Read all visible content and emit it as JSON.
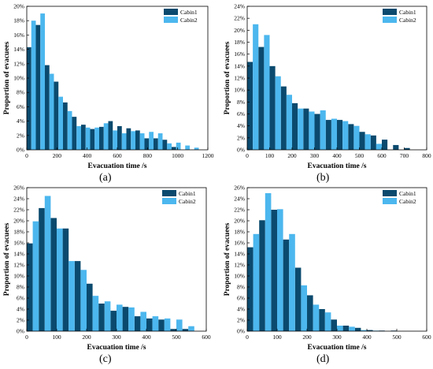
{
  "colors": {
    "cabin1": "#0b4a6e",
    "cabin2": "#4cb7ee"
  },
  "chart_data": [
    {
      "type": "bar",
      "panel": "(a)",
      "xlabel": "Evacuation time /s",
      "ylabel": "Proportion of evacuees",
      "xlim": [
        0,
        1200
      ],
      "ylim": [
        0,
        20
      ],
      "xticks": [
        0,
        200,
        400,
        600,
        800,
        1000,
        1200
      ],
      "xtick_labels": [
        "0",
        "200",
        "400",
        "600",
        "800",
        "1000",
        "1200"
      ],
      "yticks": [
        0,
        2,
        4,
        6,
        8,
        10,
        12,
        14,
        16,
        18,
        20
      ],
      "ytick_labels": [
        "0%",
        "2%",
        "4%",
        "6%",
        "8%",
        "10%",
        "12%",
        "14%",
        "16%",
        "18%",
        "20%"
      ],
      "bin_width": 30,
      "legend": "top-right",
      "series": [
        {
          "name": "Cabin1",
          "x": [
            0,
            60,
            120,
            180,
            240,
            300,
            360,
            420,
            480,
            540,
            600,
            660,
            720,
            780,
            840,
            900,
            960
          ],
          "values": [
            14.3,
            17.4,
            11.8,
            9.5,
            6.6,
            4.6,
            3.5,
            2.9,
            3.2,
            4.0,
            3.3,
            3.0,
            2.7,
            1.6,
            1.6,
            1.4,
            0.4
          ]
        },
        {
          "name": "Cabin2",
          "x": [
            30,
            90,
            150,
            210,
            270,
            330,
            390,
            450,
            510,
            570,
            630,
            690,
            750,
            810,
            870,
            930,
            990,
            1050,
            1110
          ],
          "values": [
            18.0,
            19.0,
            10.6,
            7.4,
            5.4,
            3.3,
            3.1,
            3.1,
            3.7,
            2.7,
            2.3,
            2.6,
            2.3,
            2.5,
            2.3,
            0.9,
            1.0,
            0.6,
            0.3
          ]
        }
      ]
    },
    {
      "type": "bar",
      "panel": "(b)",
      "xlabel": "Evacuation time /s",
      "ylabel": "Proportion of evacuees",
      "xlim": [
        0,
        800
      ],
      "ylim": [
        0,
        24
      ],
      "xticks": [
        0,
        100,
        200,
        300,
        400,
        500,
        600,
        700,
        800
      ],
      "xtick_labels": [
        "0",
        "100",
        "200",
        "300",
        "400",
        "500",
        "600",
        "700",
        "800"
      ],
      "yticks": [
        0,
        2,
        4,
        6,
        8,
        10,
        12,
        14,
        16,
        18,
        20,
        22,
        24
      ],
      "ytick_labels": [
        "0%",
        "2%",
        "4%",
        "6%",
        "8%",
        "10%",
        "12%",
        "14%",
        "16%",
        "18%",
        "20%",
        "22%",
        "24%"
      ],
      "bin_width": 25,
      "legend": "top-right",
      "series": [
        {
          "name": "Cabin1",
          "x": [
            0,
            50,
            100,
            150,
            200,
            250,
            300,
            350,
            400,
            450,
            500,
            550,
            600,
            650,
            700
          ],
          "values": [
            14.7,
            17.2,
            14.0,
            10.6,
            7.8,
            6.9,
            6.0,
            5.0,
            5.0,
            4.3,
            3.0,
            2.4,
            1.7,
            0.8,
            0.3
          ]
        },
        {
          "name": "Cabin2",
          "x": [
            25,
            75,
            125,
            175,
            225,
            275,
            325,
            375,
            425,
            475,
            525,
            575
          ],
          "values": [
            21.0,
            19.2,
            12.3,
            9.2,
            6.9,
            6.4,
            6.6,
            5.2,
            4.8,
            4.0,
            2.6,
            1.0
          ]
        }
      ]
    },
    {
      "type": "bar",
      "panel": "(c)",
      "xlabel": "Evacuation time /s",
      "ylabel": "Proportion of evacuees",
      "xlim": [
        0,
        600
      ],
      "ylim": [
        0,
        26
      ],
      "xticks": [
        0,
        100,
        200,
        300,
        400,
        500,
        600
      ],
      "xtick_labels": [
        "0",
        "100",
        "200",
        "300",
        "400",
        "500",
        "600"
      ],
      "yticks": [
        0,
        2,
        4,
        6,
        8,
        10,
        12,
        14,
        16,
        18,
        20,
        22,
        24,
        26
      ],
      "ytick_labels": [
        "0%",
        "2%",
        "4%",
        "6%",
        "8%",
        "10%",
        "12%",
        "14%",
        "16%",
        "18%",
        "20%",
        "22%",
        "24%",
        "26%"
      ],
      "bin_width": 20,
      "legend": "top-right",
      "series": [
        {
          "name": "Cabin1",
          "x": [
            0,
            40,
            80,
            120,
            160,
            200,
            240,
            280,
            320,
            360,
            400,
            440,
            480,
            520
          ],
          "values": [
            15.9,
            22.3,
            20.5,
            18.6,
            12.7,
            8.6,
            5.0,
            3.7,
            4.4,
            2.7,
            2.3,
            2.1,
            0.4,
            0.4
          ]
        },
        {
          "name": "Cabin2",
          "x": [
            20,
            60,
            100,
            140,
            180,
            220,
            260,
            300,
            340,
            380,
            420,
            460,
            500,
            540
          ],
          "values": [
            19.9,
            24.5,
            18.6,
            12.7,
            11.1,
            6.4,
            5.4,
            4.8,
            4.3,
            3.5,
            2.7,
            2.3,
            2.1,
            0.9
          ]
        }
      ]
    },
    {
      "type": "bar",
      "panel": "(d)",
      "xlabel": "Evacuation time /s",
      "ylabel": "Proportion of evacuees",
      "xlim": [
        0,
        600
      ],
      "ylim": [
        0,
        26
      ],
      "xticks": [
        0,
        100,
        200,
        300,
        400,
        500,
        600
      ],
      "xtick_labels": [
        "0",
        "100",
        "200",
        "300",
        "400",
        "500",
        "600"
      ],
      "yticks": [
        0,
        2,
        4,
        6,
        8,
        10,
        12,
        14,
        16,
        18,
        20,
        22,
        24,
        26
      ],
      "ytick_labels": [
        "0%",
        "2%",
        "4%",
        "6%",
        "8%",
        "10%",
        "12%",
        "14%",
        "16%",
        "18%",
        "20%",
        "22%",
        "24%",
        "26%"
      ],
      "bin_width": 20,
      "legend": "top-right",
      "series": [
        {
          "name": "Cabin1",
          "x": [
            0,
            40,
            80,
            120,
            160,
            200,
            240,
            280,
            320,
            360,
            400,
            440,
            480
          ],
          "values": [
            15.2,
            20.1,
            22.0,
            16.6,
            11.5,
            6.5,
            4.0,
            2.1,
            1.0,
            0.6,
            0.2,
            0.1,
            0.1
          ]
        },
        {
          "name": "Cabin2",
          "x": [
            20,
            60,
            100,
            140,
            180,
            220,
            260,
            300,
            340,
            380,
            420
          ],
          "values": [
            17.6,
            25.0,
            22.1,
            17.6,
            8.3,
            4.8,
            3.4,
            1.0,
            0.8,
            0.2,
            0.1
          ]
        }
      ]
    }
  ]
}
